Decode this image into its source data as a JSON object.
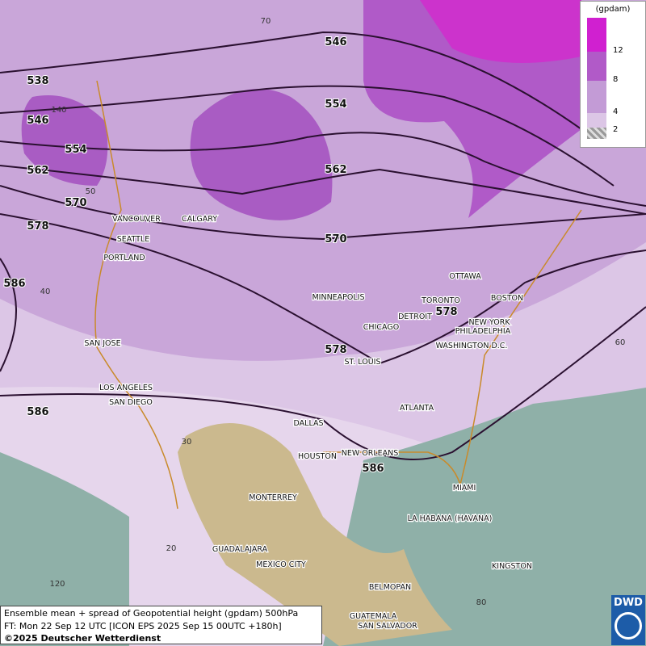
{
  "legend": {
    "unit": "(gpdam)",
    "ticks": [
      12,
      8,
      4,
      2
    ]
  },
  "contour_labels": [
    546,
    538,
    546,
    554,
    554,
    562,
    562,
    570,
    570,
    578,
    578,
    578,
    586,
    586,
    586
  ],
  "cities": [
    "VANCOUVER",
    "CALGARY",
    "SEATTLE",
    "PORTLAND",
    "MINNEAPOLIS",
    "OTTAWA",
    "TORONTO",
    "BOSTON",
    "DETROIT",
    "CHICAGO",
    "NEW YORK",
    "PHILADELPHIA",
    "WASHINGTON D.C.",
    "ST. LOUIS",
    "SAN JOSE",
    "LOS ANGELES",
    "SAN DIEGO",
    "DALLAS",
    "ATLANTA",
    "HOUSTON",
    "NEW ORLEANS",
    "MIAMI",
    "MONTERREY",
    "LA HABANA (HAVANA)",
    "GUADALAJARA",
    "MEXICO CITY",
    "KINGSTON",
    "BELMOPAN",
    "GUATEMALA",
    "SAN SALVADOR"
  ],
  "graticule_labels": [
    70,
    140,
    50,
    40,
    30,
    20,
    120,
    60,
    80
  ],
  "footer": [
    "Ensemble mean + spread of Geopotential height (gpdam) 500hPa",
    "FT: Mon 22 Sep 12 UTC [ICON EPS 2025 Sep 15 00UTC +180h]",
    "©2025 Deutscher Wetterdienst"
  ],
  "logo": "DWD"
}
